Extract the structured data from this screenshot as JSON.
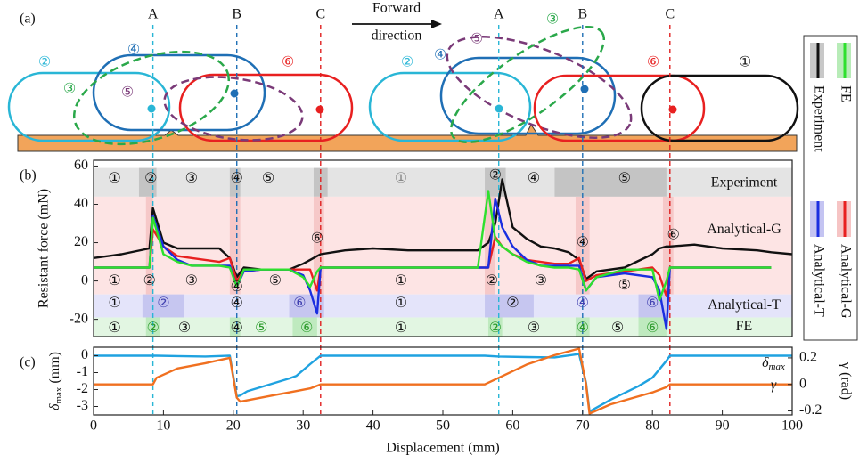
{
  "diagram": {
    "panel_label": "(a)",
    "direction": [
      "Forward",
      "direction"
    ],
    "left_states": [
      "②",
      "④",
      "⑥",
      "③",
      "⑤"
    ],
    "right_states": [
      "②",
      "④",
      "⑤",
      "③",
      "⑥",
      "①"
    ]
  },
  "markers": [
    {
      "label": "A",
      "x": 8.5,
      "color": "#29b6d6"
    },
    {
      "label": "B",
      "x": 20.5,
      "color": "#1f6fb5"
    },
    {
      "label": "C",
      "x": 32.5,
      "color": "#e02020"
    },
    {
      "label": "A",
      "x": 58,
      "color": "#29b6d6"
    },
    {
      "label": "B",
      "x": 70,
      "color": "#1f6fb5"
    },
    {
      "label": "C",
      "x": 82.5,
      "color": "#e02020"
    }
  ],
  "chart_data": [
    {
      "type": "line",
      "panel_label": "(b)",
      "ylabel": "Resistant force (mN)",
      "xlim": [
        0,
        100
      ],
      "ylim": [
        -29,
        63
      ],
      "yticks": [
        -20,
        0,
        20,
        40,
        60
      ],
      "x": [
        0,
        4,
        8,
        8.5,
        10,
        12,
        14,
        18,
        19.5,
        20.5,
        21.5,
        24,
        28,
        30,
        31,
        32,
        32.5,
        36,
        40,
        45,
        50,
        55,
        56.5,
        57.5,
        58.5,
        60,
        62,
        64,
        66,
        68,
        69.5,
        70.5,
        72,
        76,
        80,
        81,
        82,
        82.5,
        86,
        90,
        95,
        97,
        100
      ],
      "series": [
        {
          "name": "Experiment",
          "color": "#111111",
          "band_color": "#c8c8c8",
          "values": [
            12,
            14,
            17,
            38,
            20,
            17,
            17,
            17,
            12,
            2,
            7,
            6,
            6,
            9,
            11,
            13,
            14,
            16,
            17,
            16,
            16,
            16,
            20,
            30,
            53,
            28,
            22,
            18,
            17,
            15,
            11,
            1,
            5,
            7,
            14,
            17,
            18,
            18,
            19,
            17,
            16,
            15,
            14
          ]
        },
        {
          "name": "Analytical-G",
          "color": "#e82020",
          "band_color": "#f6c4c4",
          "values": [
            7,
            7,
            7,
            27,
            18,
            13,
            12,
            10,
            12,
            0,
            5,
            6,
            6,
            6,
            6,
            -5,
            7,
            7,
            7,
            7,
            7,
            7,
            7,
            23,
            18,
            14,
            11,
            10,
            9,
            9,
            12,
            0,
            3,
            5,
            7,
            3,
            -8,
            7,
            7,
            7,
            7,
            7,
            null
          ]
        },
        {
          "name": "Analytical-T",
          "color": "#1a2ee0",
          "band_color": "#c4c4f2",
          "values": [
            7,
            7,
            7,
            34,
            18,
            11,
            8,
            8,
            8,
            -3,
            5,
            6,
            6,
            3,
            -5,
            -17,
            7,
            7,
            7,
            7,
            7,
            7,
            7,
            43,
            28,
            18,
            11,
            8,
            8,
            8,
            8,
            -5,
            2,
            4,
            2,
            -5,
            -25,
            7,
            7,
            7,
            7,
            7,
            null
          ]
        },
        {
          "name": "FE",
          "color": "#2ee02e",
          "band_color": "#b8ecb8",
          "values": [
            7,
            7,
            7,
            33,
            14,
            10,
            8,
            8,
            7,
            -3,
            6,
            6,
            6,
            2,
            -3,
            5,
            7,
            7,
            7,
            7,
            7,
            7,
            47,
            22,
            18,
            14,
            10,
            8,
            7,
            7,
            6,
            -5,
            2,
            6,
            6,
            -10,
            0,
            7,
            7,
            7,
            7,
            7,
            null
          ]
        }
      ],
      "rows": [
        {
          "label": "Experiment",
          "ylim": [
            44,
            59
          ],
          "label_y": 51,
          "color": "#e4e4e4",
          "shade": "#c4c4c4",
          "shades": [
            [
              6.5,
              9
            ],
            [
              19.5,
              21
            ],
            [
              31.5,
              33.5
            ],
            [
              56,
              59
            ],
            [
              66,
              82
            ]
          ],
          "labels": [
            {
              "text": "①",
              "x": 3,
              "y": 53.5
            },
            {
              "text": "②",
              "x": 8.2,
              "y": 53.5
            },
            {
              "text": "③",
              "x": 14,
              "y": 53.5
            },
            {
              "text": "④",
              "x": 20.5,
              "y": 53.5
            },
            {
              "text": "⑤",
              "x": 25,
              "y": 53.5
            },
            {
              "text": "①",
              "x": 44,
              "y": 53.5,
              "color": "#888888"
            },
            {
              "text": "②",
              "x": 57.5,
              "y": 55
            },
            {
              "text": "④",
              "x": 63,
              "y": 53.5
            },
            {
              "text": "⑤",
              "x": 76,
              "y": 53.5
            }
          ]
        },
        {
          "label": "Analytical-G",
          "ylim": [
            -7,
            44
          ],
          "label_y": 26.5,
          "color": "#fde4e4",
          "shade": "#f6c8c8",
          "shades": [
            [
              7.5,
              8.5
            ],
            [
              19.5,
              21
            ],
            [
              31.5,
              33
            ],
            [
              56,
              57.5
            ],
            [
              69,
              71
            ],
            [
              81.5,
              83
            ]
          ],
          "labels": [
            {
              "text": "①",
              "x": 3,
              "y": 0
            },
            {
              "text": "②",
              "x": 8,
              "y": 0
            },
            {
              "text": "③",
              "x": 14,
              "y": 0
            },
            {
              "text": "④",
              "x": 20.5,
              "y": -3.3
            },
            {
              "text": "⑤",
              "x": 26,
              "y": 0
            },
            {
              "text": "⑥",
              "x": 32,
              "y": 22
            },
            {
              "text": "①",
              "x": 44,
              "y": 0
            },
            {
              "text": "②",
              "x": 57,
              "y": 0
            },
            {
              "text": "③",
              "x": 64,
              "y": 0
            },
            {
              "text": "④",
              "x": 70,
              "y": 20
            },
            {
              "text": "⑤",
              "x": 76,
              "y": -2.3
            },
            {
              "text": "⑥",
              "x": 83,
              "y": 24
            }
          ]
        },
        {
          "label": "Analytical-T",
          "ylim": [
            -19,
            -7
          ],
          "label_y": -13,
          "color": "#e4e4fa",
          "shade": "#c6c6f0",
          "shades": [
            [
              7,
              13
            ],
            [
              28,
              33
            ],
            [
              56,
              63
            ],
            [
              78,
              82.5
            ]
          ],
          "labels": [
            {
              "text": "①",
              "x": 3,
              "y": -11.5
            },
            {
              "text": "②",
              "x": 10,
              "y": -11.5,
              "color": "#4040b0"
            },
            {
              "text": "④",
              "x": 20.5,
              "y": -11.5
            },
            {
              "text": "⑥",
              "x": 29.5,
              "y": -11.5,
              "color": "#4040b0"
            },
            {
              "text": "①",
              "x": 44,
              "y": -11.5
            },
            {
              "text": "②",
              "x": 60,
              "y": -11.5
            },
            {
              "text": "④",
              "x": 70,
              "y": -11.5,
              "color": "#4040b0"
            },
            {
              "text": "⑥",
              "x": 80,
              "y": -11.5,
              "color": "#4040b0"
            }
          ]
        },
        {
          "label": "FE",
          "ylim": [
            -29,
            -19
          ],
          "label_y": -24,
          "color": "#e2f6e2",
          "shade": "#bfeabf",
          "shades": [
            [
              7.5,
              9.5
            ],
            [
              19.5,
              21
            ],
            [
              28.5,
              32
            ],
            [
              56.5,
              58.5
            ],
            [
              69,
              71
            ],
            [
              78,
              82
            ]
          ],
          "labels": [
            {
              "text": "①",
              "x": 3,
              "y": -24.5
            },
            {
              "text": "②",
              "x": 8.5,
              "y": -24.5,
              "color": "#2a9a2a"
            },
            {
              "text": "③",
              "x": 13,
              "y": -24.5
            },
            {
              "text": "④",
              "x": 20.5,
              "y": -24.5
            },
            {
              "text": "⑤",
              "x": 24,
              "y": -24.5,
              "color": "#2a9a2a"
            },
            {
              "text": "⑥",
              "x": 30.5,
              "y": -24.5,
              "color": "#2a9a2a"
            },
            {
              "text": "①",
              "x": 44,
              "y": -24.5
            },
            {
              "text": "②",
              "x": 57.5,
              "y": -24.5,
              "color": "#2a9a2a"
            },
            {
              "text": "③",
              "x": 63,
              "y": -24.5
            },
            {
              "text": "④",
              "x": 70,
              "y": -24.5,
              "color": "#2a9a2a"
            },
            {
              "text": "⑤",
              "x": 75,
              "y": -24.5
            },
            {
              "text": "⑥",
              "x": 80,
              "y": -24.5,
              "color": "#2a9a2a"
            }
          ]
        }
      ]
    },
    {
      "type": "line",
      "panel_label": "(c)",
      "xlabel": "Displacement (mm)",
      "ylabel": [
        "δ",
        "max",
        " (mm)"
      ],
      "y2label": "γ (rad)",
      "xlim": [
        0,
        100
      ],
      "xticks": [
        0,
        10,
        20,
        30,
        40,
        50,
        60,
        70,
        80,
        90,
        100
      ],
      "ylim": [
        -3.5,
        0.5
      ],
      "yticks": [
        -3,
        -2,
        -1,
        0
      ],
      "y2lim": [
        -0.23,
        0.28
      ],
      "y2ticks": [
        -0.2,
        0,
        0.2
      ],
      "x": [
        0,
        8.5,
        9,
        12,
        16,
        19.5,
        20.5,
        21,
        22,
        24,
        26,
        28,
        29,
        31,
        32.5,
        56,
        58,
        62,
        66,
        69.5,
        70.5,
        71,
        74,
        78,
        80,
        82,
        82.5,
        100
      ],
      "series": [
        {
          "name": "δ",
          "name_sub": "max",
          "color": "#1fa2e0",
          "values": [
            0,
            0,
            0,
            -0.02,
            -0.05,
            0,
            -2.4,
            -2.35,
            -2.1,
            -1.85,
            -1.6,
            -1.35,
            -1.2,
            -0.5,
            0,
            0,
            -0.05,
            -0.08,
            -0.1,
            0.1,
            -1.6,
            -3.3,
            -2.6,
            -1.8,
            -1.3,
            -0.3,
            0,
            0
          ]
        },
        {
          "name": "γ",
          "color": "#f07020",
          "axis": "y2",
          "values": [
            0,
            0,
            0.05,
            0.12,
            0.16,
            0.2,
            -0.1,
            -0.13,
            -0.12,
            -0.1,
            -0.08,
            -0.06,
            -0.05,
            -0.03,
            0,
            0,
            0.05,
            0.15,
            0.22,
            0.27,
            0,
            -0.22,
            -0.15,
            -0.09,
            -0.06,
            -0.02,
            0,
            0
          ]
        }
      ]
    }
  ]
}
